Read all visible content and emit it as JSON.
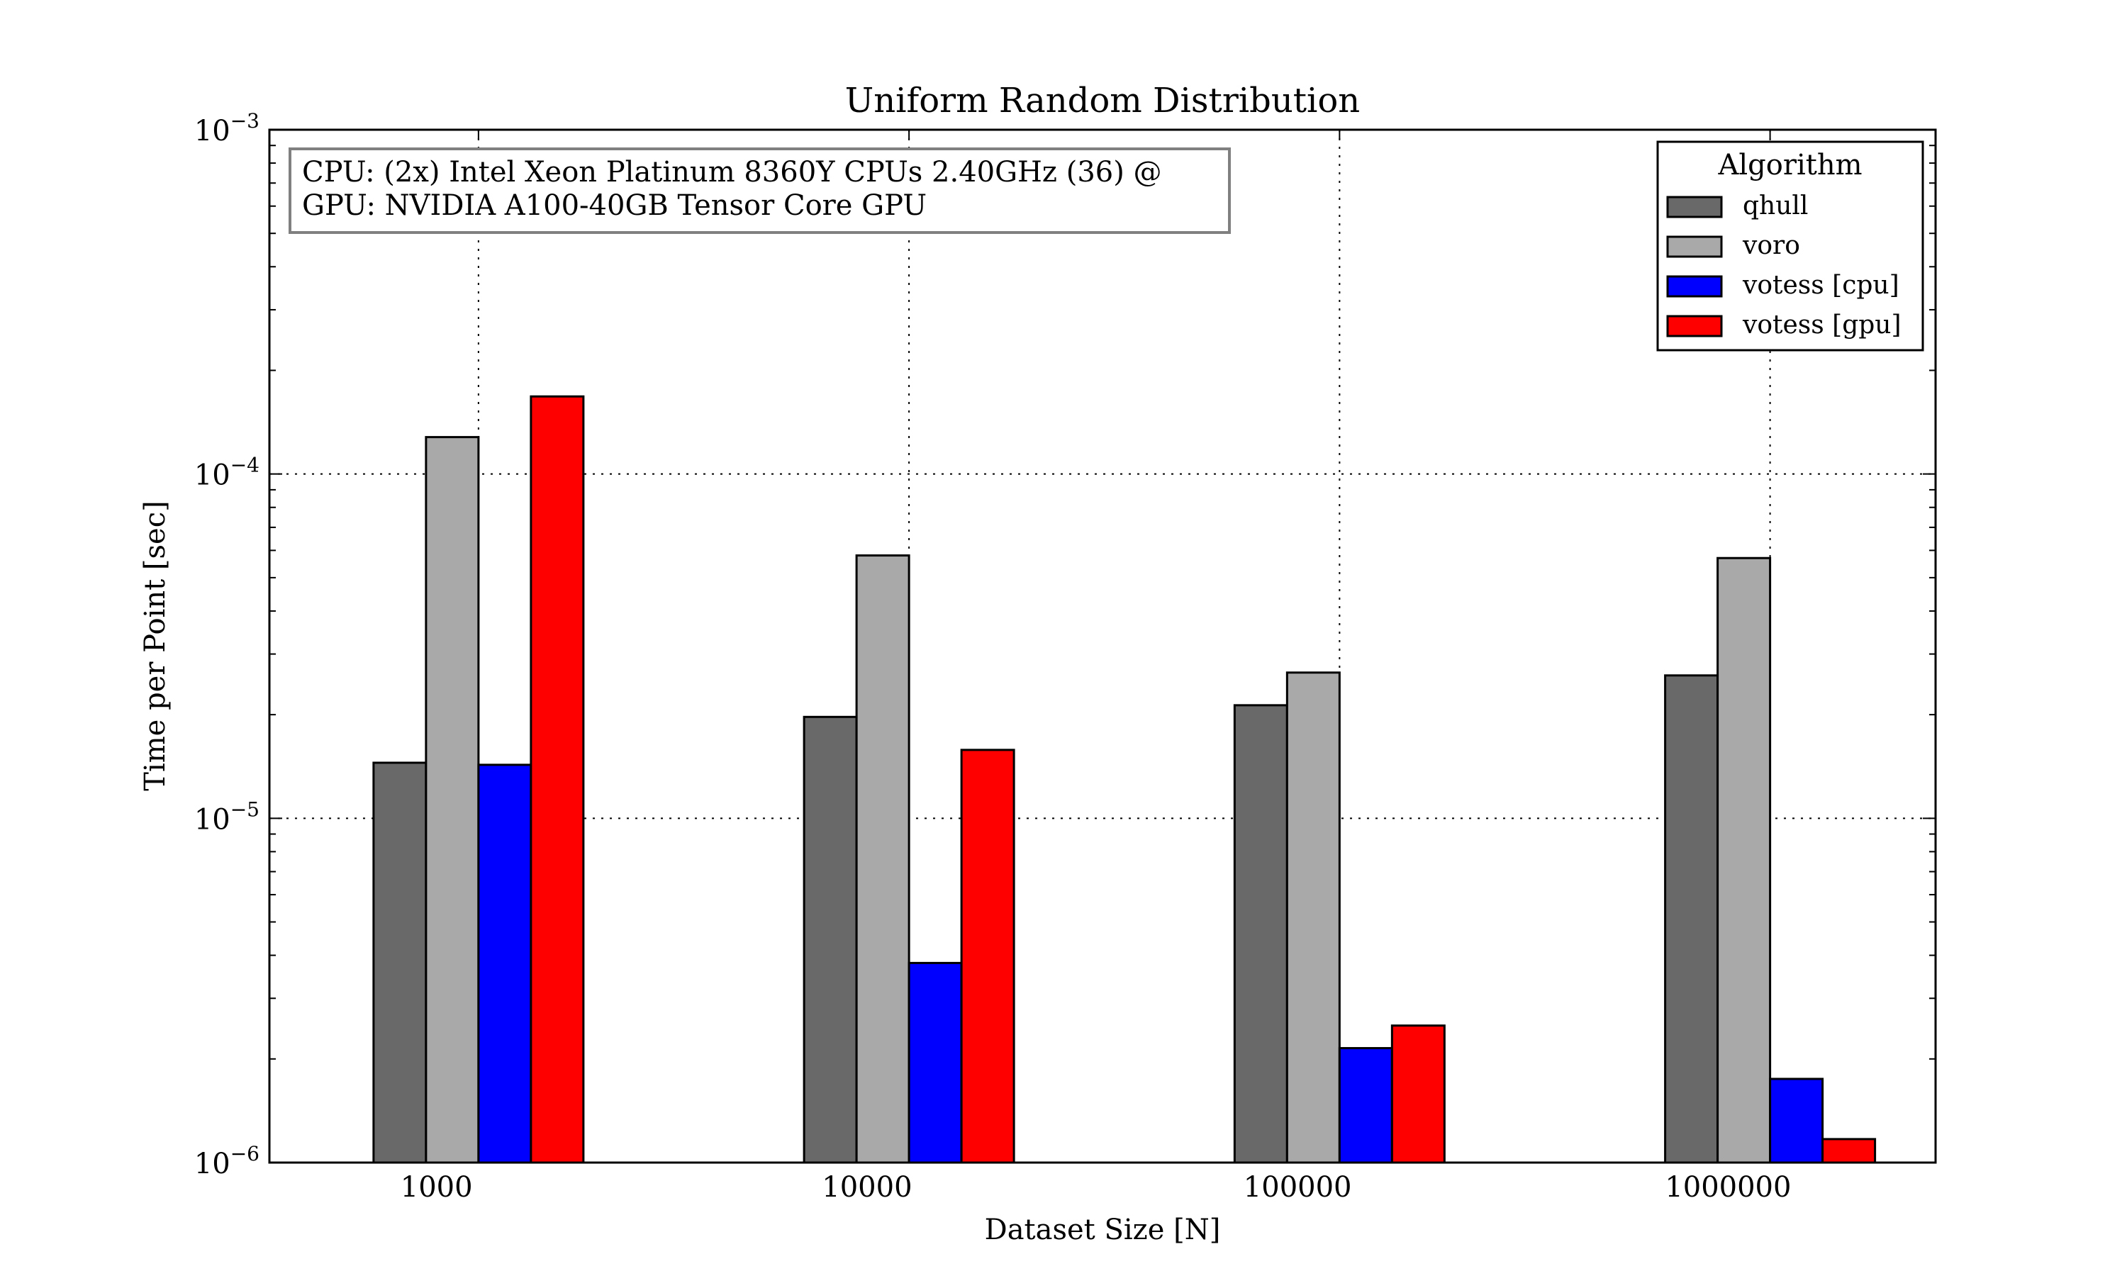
{
  "chart_data": {
    "type": "bar",
    "title": "Uniform Random Distribution",
    "xlabel": "Dataset Size [N]",
    "ylabel": "Time per Point [sec]",
    "y_scale": "log",
    "ylim": [
      1e-06,
      0.001
    ],
    "y_ticks": [
      {
        "value": 0.001,
        "base": "10",
        "exp": "−3"
      },
      {
        "value": 0.0001,
        "base": "10",
        "exp": "−4"
      },
      {
        "value": 1e-05,
        "base": "10",
        "exp": "−5"
      },
      {
        "value": 1e-06,
        "base": "10",
        "exp": "−6"
      }
    ],
    "grid": true,
    "categories": [
      "1000",
      "10000",
      "100000",
      "1000000"
    ],
    "series": [
      {
        "name": "qhull",
        "color": "#696969",
        "values": [
          1.45e-05,
          1.97e-05,
          2.13e-05,
          2.6e-05
        ]
      },
      {
        "name": "voro",
        "color": "#a9a9a9",
        "values": [
          0.000128,
          5.8e-05,
          2.65e-05,
          5.7e-05
        ]
      },
      {
        "name": "votess [cpu]",
        "color": "#0000ff",
        "values": [
          1.43e-05,
          3.8e-06,
          2.15e-06,
          1.75e-06
        ]
      },
      {
        "name": "votess [gpu]",
        "color": "#ff0000",
        "values": [
          0.000168,
          1.58e-05,
          2.5e-06,
          1.17e-06
        ]
      }
    ],
    "legend": {
      "title": "Algorithm",
      "placement": "top-right"
    },
    "annotation": {
      "lines": [
        "CPU: (2x) Intel Xeon Platinum 8360Y CPUs 2.40GHz (36) @",
        "GPU: NVIDIA A100-40GB Tensor Core GPU"
      ],
      "placement": "top-left"
    }
  }
}
